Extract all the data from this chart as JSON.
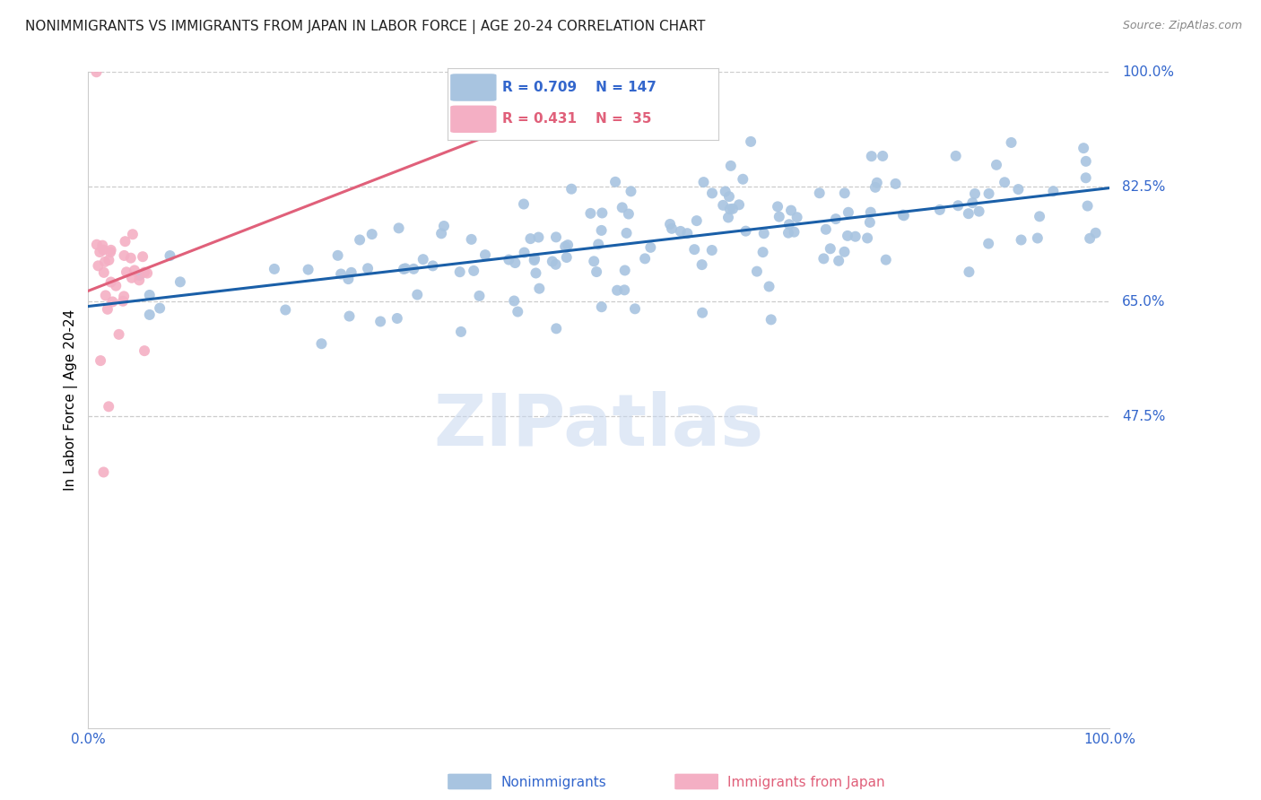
{
  "title": "NONIMMIGRANTS VS IMMIGRANTS FROM JAPAN IN LABOR FORCE | AGE 20-24 CORRELATION CHART",
  "source": "Source: ZipAtlas.com",
  "ylabel": "In Labor Force | Age 20-24",
  "ytick_labels": [
    "100.0%",
    "82.5%",
    "65.0%",
    "47.5%"
  ],
  "ytick_values": [
    1.0,
    0.825,
    0.65,
    0.475
  ],
  "xlim": [
    0.0,
    1.0
  ],
  "ylim": [
    0.0,
    1.0
  ],
  "blue_R": 0.709,
  "blue_N": 147,
  "pink_R": 0.431,
  "pink_N": 35,
  "blue_color": "#a8c4e0",
  "blue_line_color": "#1a5fa8",
  "pink_color": "#f4afc4",
  "pink_line_color": "#e0607a",
  "legend_label_blue": "Nonimmigrants",
  "legend_label_pink": "Immigrants from Japan",
  "watermark": "ZIPatlas",
  "title_color": "#222222",
  "source_color": "#888888",
  "right_label_color": "#3366cc",
  "bottom_label_color_blue": "#3366cc",
  "bottom_label_color_pink": "#e0607a",
  "grid_color": "#cccccc",
  "blue_trend_intercept": 0.645,
  "blue_trend_slope": 0.185,
  "pink_trend_intercept": 0.645,
  "pink_trend_slope": 1.2
}
